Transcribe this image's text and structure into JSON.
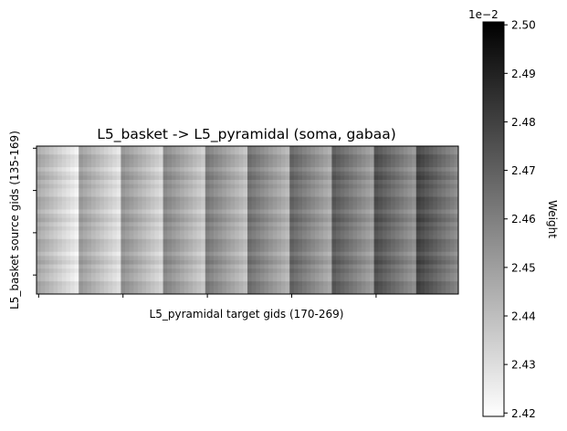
{
  "chart_data": {
    "type": "heatmap",
    "title": "L5_basket -> L5_pyramidal (soma, gabaa)",
    "xlabel": "L5_pyramidal target gids (170-269)",
    "ylabel": "L5_basket source gids (135-169)",
    "n_rows": 35,
    "n_cols": 100,
    "x_tick_labels": [],
    "y_tick_labels": [],
    "colormap": "Greys",
    "grid": false,
    "colorbar": {
      "label": "Weight",
      "offset_text": "1e−2",
      "vmin": 2.4193,
      "vmax": 2.5006,
      "ticks": [
        2.42,
        2.43,
        2.44,
        2.45,
        2.46,
        2.47,
        2.48,
        2.49,
        2.5
      ],
      "tick_labels": [
        "2.42",
        "2.43",
        "2.44",
        "2.45",
        "2.46",
        "2.47",
        "2.48",
        "2.49",
        "2.50"
      ]
    },
    "pattern_note": "Approximate reconstruction: 10 column blocks of 10 targets; weight decreases left-to-right within each block and rises with block index; alternating light/dark row banding."
  }
}
